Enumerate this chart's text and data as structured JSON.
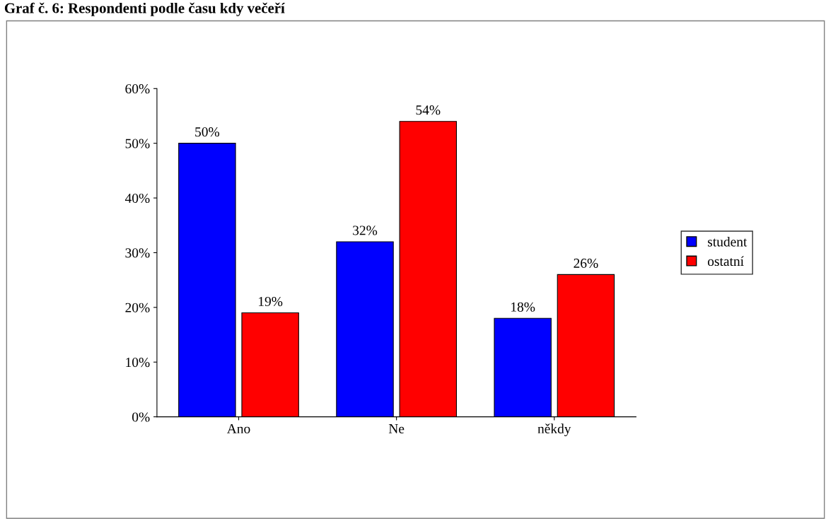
{
  "chart_data": {
    "type": "bar",
    "title": "Graf č. 6: Respondenti podle času kdy večeří",
    "categories": [
      "Ano",
      "Ne",
      "někdy"
    ],
    "series": [
      {
        "name": "student",
        "color": "#0000ff",
        "values": [
          50,
          32,
          18
        ],
        "value_labels": [
          "50%",
          "32%",
          "18%"
        ]
      },
      {
        "name": "ostatní",
        "color": "#ff0000",
        "values": [
          19,
          54,
          26
        ],
        "value_labels": [
          "19%",
          "54%",
          "26%"
        ]
      }
    ],
    "ylim": [
      0,
      60
    ],
    "yticks": [
      {
        "value": 0,
        "label": "0%"
      },
      {
        "value": 10,
        "label": "10%"
      },
      {
        "value": 20,
        "label": "20%"
      },
      {
        "value": 30,
        "label": "30%"
      },
      {
        "value": 40,
        "label": "40%"
      },
      {
        "value": 50,
        "label": "50%"
      },
      {
        "value": 60,
        "label": "60%"
      }
    ],
    "grid": false,
    "legend": "right"
  }
}
